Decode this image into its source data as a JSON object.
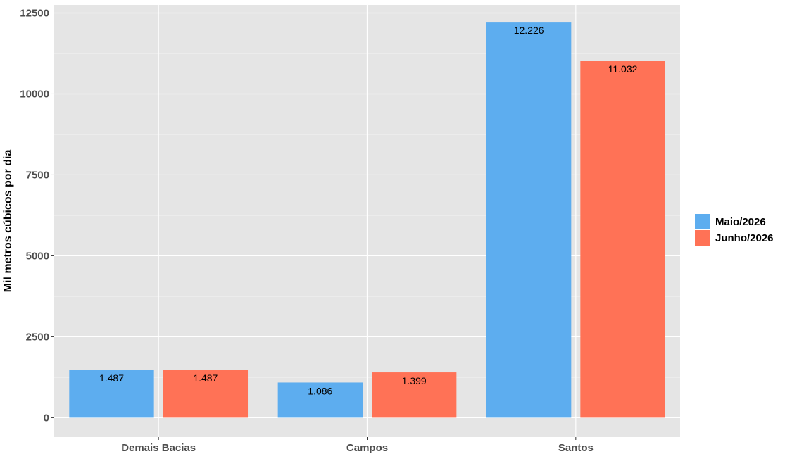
{
  "chart_data": {
    "type": "bar",
    "title": "",
    "xlabel": "",
    "ylabel": "Mil metros cúbicos por dia",
    "categories": [
      "Demais Bacias",
      "Campos",
      "Santos"
    ],
    "series": [
      {
        "name": "Maio/2026",
        "color": "#5DADEF",
        "values": [
          1487,
          1086,
          12226
        ],
        "labels": [
          "1.487",
          "1.086",
          "12.226"
        ]
      },
      {
        "name": "Junho/2026",
        "color": "#FF7256",
        "values": [
          1487,
          1399,
          11032
        ],
        "labels": [
          "1.487",
          "1.399",
          "11.032"
        ]
      }
    ],
    "ylim": [
      -600,
      12750
    ],
    "yticks": [
      0,
      2500,
      5000,
      7500,
      10000,
      12500
    ],
    "ytick_labels": [
      "0",
      "2500",
      "5000",
      "7500",
      "10000",
      "12500"
    ],
    "grid": true,
    "legend_position": "right",
    "panel_background": "#E5E5E5",
    "grid_color": "#FFFFFF"
  }
}
